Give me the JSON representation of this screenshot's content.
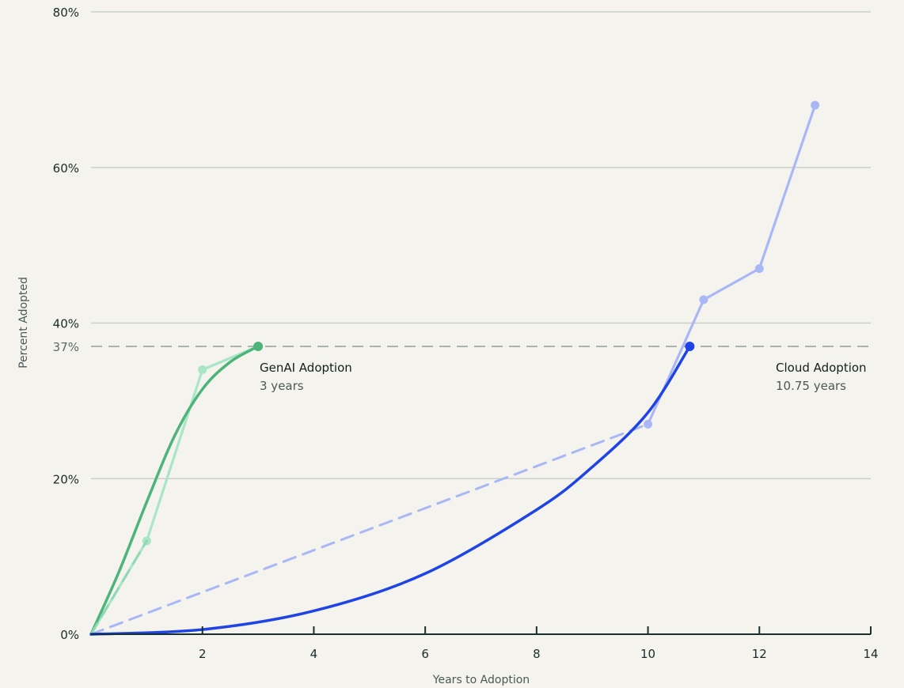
{
  "chart_data": {
    "type": "line",
    "title": "",
    "xlabel": "Years to Adoption",
    "ylabel": "Percent Adopted",
    "xlim": [
      0,
      14
    ],
    "ylim": [
      0,
      80
    ],
    "x_ticks": [
      {
        "value": 2,
        "label": "2"
      },
      {
        "value": 4,
        "label": "4"
      },
      {
        "value": 6,
        "label": "6"
      },
      {
        "value": 8,
        "label": "8"
      },
      {
        "value": 10,
        "label": "10"
      },
      {
        "value": 12,
        "label": "12"
      },
      {
        "value": 14,
        "label": "14"
      }
    ],
    "y_ticks": [
      {
        "value": 0,
        "label": "0%"
      },
      {
        "value": 20,
        "label": "20%"
      },
      {
        "value": 40,
        "label": "40%"
      },
      {
        "value": 60,
        "label": "60%"
      },
      {
        "value": 80,
        "label": "80%"
      }
    ],
    "grid": true,
    "reference_line": {
      "value": 37,
      "label": "37%"
    },
    "series": [
      {
        "key": "genai_observed",
        "style": "line-markers",
        "color": "#a8e6c6",
        "points": [
          [
            0,
            0
          ],
          [
            1,
            12
          ],
          [
            2,
            34
          ],
          [
            3,
            37
          ]
        ]
      },
      {
        "key": "genai_fitted",
        "style": "curve",
        "color": "#4db579",
        "points": [
          [
            0,
            0
          ],
          [
            0.5,
            8
          ],
          [
            1,
            17
          ],
          [
            1.5,
            25.5
          ],
          [
            2,
            31.5
          ],
          [
            2.5,
            35
          ],
          [
            3,
            37
          ]
        ]
      },
      {
        "key": "genai_trend",
        "style": "dashed",
        "color": "#8fd9b4",
        "points": [
          [
            0,
            0
          ],
          [
            1,
            12
          ]
        ]
      },
      {
        "key": "cloud_observed",
        "style": "line-markers",
        "color": "#a9b8f5",
        "points": [
          [
            10,
            27
          ],
          [
            11,
            43
          ],
          [
            12,
            47
          ],
          [
            13,
            68
          ]
        ]
      },
      {
        "key": "cloud_trend",
        "style": "dashed",
        "color": "#a9b8f5",
        "points": [
          [
            0,
            0
          ],
          [
            10,
            27
          ]
        ]
      },
      {
        "key": "cloud_fitted",
        "style": "curve",
        "color": "#1f44e6",
        "points": [
          [
            0,
            0
          ],
          [
            2,
            0.6
          ],
          [
            4,
            3
          ],
          [
            6,
            7.8
          ],
          [
            8,
            16
          ],
          [
            9,
            21.5
          ],
          [
            10,
            28.5
          ],
          [
            10.75,
            37
          ]
        ]
      }
    ],
    "annotations": [
      {
        "key": "genai",
        "point": [
          3,
          37
        ],
        "color": "#4db579",
        "title": "GenAI Adoption",
        "subtitle": "3 years"
      },
      {
        "key": "cloud",
        "point": [
          10.75,
          37
        ],
        "color": "#1f44e6",
        "title": "Cloud Adoption",
        "subtitle": "10.75 years"
      }
    ]
  }
}
